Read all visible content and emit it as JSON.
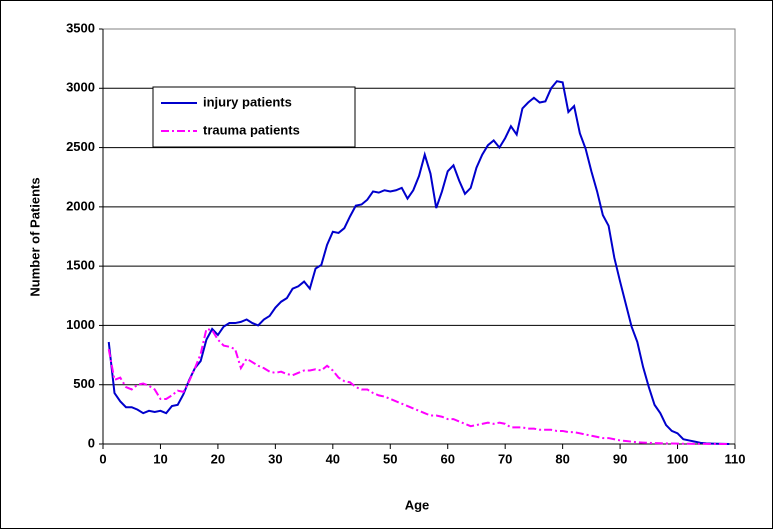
{
  "chart_data": {
    "type": "line",
    "x_label": "Age",
    "y_label": "Number of Patients",
    "xlim": [
      0,
      110
    ],
    "xticks": [
      0,
      10,
      20,
      30,
      40,
      50,
      60,
      70,
      80,
      90,
      100,
      110
    ],
    "ylim": [
      0,
      3500
    ],
    "yticks": [
      0,
      500,
      1000,
      1500,
      2000,
      2500,
      3000,
      3500
    ],
    "grid": true,
    "legend": "upper left",
    "x": [
      1,
      2,
      3,
      4,
      5,
      6,
      7,
      8,
      9,
      10,
      11,
      12,
      13,
      14,
      15,
      16,
      17,
      18,
      19,
      20,
      21,
      22,
      23,
      24,
      25,
      26,
      27,
      28,
      29,
      30,
      31,
      32,
      33,
      34,
      35,
      36,
      37,
      38,
      39,
      40,
      41,
      42,
      43,
      44,
      45,
      46,
      47,
      48,
      49,
      50,
      51,
      52,
      53,
      54,
      55,
      56,
      57,
      58,
      59,
      60,
      61,
      62,
      63,
      64,
      65,
      66,
      67,
      68,
      69,
      70,
      71,
      72,
      73,
      74,
      75,
      76,
      77,
      78,
      79,
      80,
      81,
      82,
      83,
      84,
      85,
      86,
      87,
      88,
      89,
      90,
      91,
      92,
      93,
      94,
      95,
      96,
      97,
      98,
      99,
      100,
      101,
      102,
      103,
      104,
      105,
      106,
      107,
      108,
      109
    ],
    "series": [
      {
        "name": "injury patients",
        "color": "#0000cc",
        "dash": "solid",
        "values": [
          860,
          430,
          360,
          310,
          310,
          290,
          260,
          280,
          270,
          280,
          260,
          320,
          330,
          420,
          540,
          640,
          700,
          880,
          970,
          920,
          990,
          1020,
          1020,
          1030,
          1050,
          1020,
          1000,
          1050,
          1080,
          1150,
          1200,
          1230,
          1310,
          1330,
          1370,
          1310,
          1480,
          1510,
          1680,
          1790,
          1780,
          1820,
          1920,
          2010,
          2020,
          2060,
          2130,
          2120,
          2140,
          2130,
          2140,
          2160,
          2070,
          2140,
          2260,
          2440,
          2280,
          1990,
          2130,
          2300,
          2350,
          2220,
          2110,
          2160,
          2330,
          2440,
          2520,
          2560,
          2500,
          2580,
          2680,
          2610,
          2830,
          2880,
          2920,
          2880,
          2890,
          3000,
          3060,
          3050,
          2800,
          2850,
          2620,
          2490,
          2300,
          2130,
          1930,
          1840,
          1570,
          1370,
          1180,
          990,
          860,
          650,
          480,
          330,
          260,
          160,
          110,
          90,
          40,
          30,
          20,
          10,
          5,
          3,
          2,
          1,
          0
        ]
      },
      {
        "name": "trauma patients",
        "color": "#ff00ff",
        "dash": "dashdot",
        "values": [
          800,
          540,
          560,
          480,
          460,
          500,
          510,
          490,
          460,
          380,
          380,
          410,
          450,
          440,
          530,
          640,
          760,
          970,
          960,
          880,
          830,
          820,
          800,
          640,
          720,
          690,
          660,
          640,
          610,
          600,
          610,
          590,
          580,
          600,
          620,
          620,
          630,
          620,
          660,
          620,
          560,
          530,
          520,
          480,
          460,
          460,
          430,
          410,
          400,
          380,
          360,
          340,
          320,
          300,
          280,
          260,
          240,
          240,
          230,
          210,
          210,
          190,
          170,
          150,
          160,
          170,
          180,
          170,
          180,
          170,
          140,
          140,
          140,
          130,
          130,
          120,
          120,
          120,
          110,
          110,
          100,
          100,
          90,
          80,
          70,
          60,
          50,
          50,
          40,
          30,
          25,
          20,
          15,
          12,
          10,
          8,
          6,
          5,
          4,
          3,
          2,
          2,
          1,
          1,
          1,
          0,
          0,
          0,
          0
        ]
      }
    ]
  }
}
